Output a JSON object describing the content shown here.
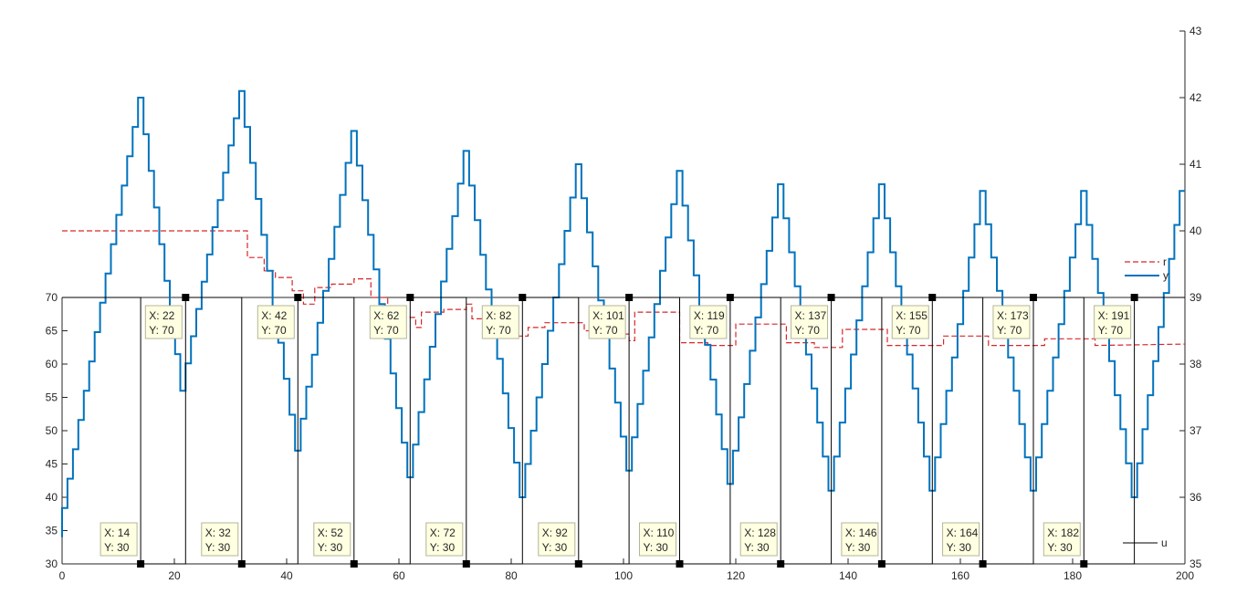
{
  "chart_data": {
    "type": "line",
    "title": "",
    "xlabel": "",
    "x_range": [
      0,
      200
    ],
    "x_ticks": [
      0,
      20,
      40,
      60,
      80,
      100,
      120,
      140,
      160,
      180,
      200
    ],
    "left_axis": {
      "ylim": [
        30,
        70
      ],
      "ticks": [
        30,
        35,
        40,
        45,
        50,
        55,
        60,
        65,
        70
      ]
    },
    "right_axis": {
      "ylim": [
        35,
        43
      ],
      "ticks": [
        35,
        36,
        37,
        38,
        39,
        40,
        41,
        42,
        43
      ]
    },
    "grid": false,
    "legend_upper": {
      "placement": "bottom-right of upper plot",
      "entries": [
        "r",
        "y"
      ]
    },
    "legend_lower": {
      "placement": "bottom-right",
      "entries": [
        "u"
      ]
    },
    "series": [
      {
        "name": "r",
        "axis": "right",
        "style": "dashed-step",
        "color": "#d62728",
        "points": [
          [
            0,
            40.0
          ],
          [
            33,
            40.0
          ],
          [
            33,
            39.6
          ],
          [
            36,
            39.6
          ],
          [
            36,
            39.4
          ],
          [
            38,
            39.4
          ],
          [
            38,
            39.3
          ],
          [
            41,
            39.3
          ],
          [
            41,
            39.1
          ],
          [
            43,
            39.1
          ],
          [
            43,
            38.9
          ],
          [
            45,
            38.9
          ],
          [
            45,
            39.15
          ],
          [
            48,
            39.15
          ],
          [
            48,
            39.2
          ],
          [
            52,
            39.2
          ],
          [
            52,
            39.28
          ],
          [
            55,
            39.28
          ],
          [
            55,
            39.0
          ],
          [
            58,
            39.0
          ],
          [
            58,
            38.85
          ],
          [
            61,
            38.85
          ],
          [
            61,
            38.7
          ],
          [
            63,
            38.7
          ],
          [
            63,
            38.55
          ],
          [
            64,
            38.55
          ],
          [
            64,
            38.78
          ],
          [
            68,
            38.78
          ],
          [
            68,
            38.82
          ],
          [
            72,
            38.82
          ],
          [
            72,
            38.9
          ],
          [
            73,
            38.9
          ],
          [
            73,
            38.68
          ],
          [
            76,
            38.68
          ],
          [
            76,
            38.55
          ],
          [
            80,
            38.55
          ],
          [
            80,
            38.42
          ],
          [
            83,
            38.42
          ],
          [
            83,
            38.55
          ],
          [
            86,
            38.55
          ],
          [
            86,
            38.62
          ],
          [
            93,
            38.62
          ],
          [
            93,
            38.5
          ],
          [
            97,
            38.5
          ],
          [
            97,
            38.45
          ],
          [
            101,
            38.45
          ],
          [
            101,
            38.35
          ],
          [
            102,
            38.35
          ],
          [
            102,
            38.78
          ],
          [
            110,
            38.78
          ],
          [
            110,
            38.32
          ],
          [
            115,
            38.32
          ],
          [
            115,
            38.28
          ],
          [
            120,
            38.28
          ],
          [
            120,
            38.6
          ],
          [
            129,
            38.6
          ],
          [
            129,
            38.32
          ],
          [
            134,
            38.32
          ],
          [
            134,
            38.25
          ],
          [
            139,
            38.25
          ],
          [
            139,
            38.52
          ],
          [
            147,
            38.52
          ],
          [
            147,
            38.28
          ],
          [
            157,
            38.28
          ],
          [
            157,
            38.42
          ],
          [
            165,
            38.42
          ],
          [
            165,
            38.28
          ],
          [
            175,
            38.28
          ],
          [
            175,
            38.38
          ],
          [
            184,
            38.38
          ],
          [
            184,
            38.28
          ],
          [
            200,
            38.3
          ]
        ]
      },
      {
        "name": "y",
        "axis": "right",
        "style": "solid-staircase",
        "color": "#0072bd",
        "peaks": [
          [
            0,
            35.4
          ],
          [
            14.5,
            42.0
          ],
          [
            22,
            37.6
          ],
          [
            32.5,
            42.1
          ],
          [
            42.5,
            36.7
          ],
          [
            52.5,
            41.5
          ],
          [
            62.5,
            36.3
          ],
          [
            72.5,
            41.2
          ],
          [
            82.5,
            36.0
          ],
          [
            92.5,
            41.0
          ],
          [
            101.5,
            36.4
          ],
          [
            110.5,
            40.9
          ],
          [
            119.5,
            36.2
          ],
          [
            128.5,
            40.7
          ],
          [
            137.5,
            36.1
          ],
          [
            146.5,
            40.7
          ],
          [
            155.5,
            36.1
          ],
          [
            164.5,
            40.6
          ],
          [
            173.5,
            36.1
          ],
          [
            182.5,
            40.6
          ],
          [
            191.5,
            36.0
          ],
          [
            200,
            40.6
          ]
        ]
      },
      {
        "name": "u",
        "axis": "left",
        "style": "square-wave",
        "color": "#000000",
        "edges": [
          14,
          22,
          32,
          42,
          52,
          62,
          72,
          82,
          92,
          101,
          110,
          119,
          128,
          137,
          146,
          155,
          164,
          173,
          182,
          191
        ],
        "start_level": 70,
        "levels": [
          30,
          70
        ]
      }
    ],
    "annotations": [
      {
        "label_x": "X: 22",
        "label_y": "Y: 70",
        "x": 22,
        "y": 70
      },
      {
        "label_x": "X: 42",
        "label_y": "Y: 70",
        "x": 42,
        "y": 70
      },
      {
        "label_x": "X: 62",
        "label_y": "Y: 70",
        "x": 62,
        "y": 70
      },
      {
        "label_x": "X: 82",
        "label_y": "Y: 70",
        "x": 82,
        "y": 70
      },
      {
        "label_x": "X: 101",
        "label_y": "Y: 70",
        "x": 101,
        "y": 70
      },
      {
        "label_x": "X: 119",
        "label_y": "Y: 70",
        "x": 119,
        "y": 70
      },
      {
        "label_x": "X: 137",
        "label_y": "Y: 70",
        "x": 137,
        "y": 70
      },
      {
        "label_x": "X: 155",
        "label_y": "Y: 70",
        "x": 155,
        "y": 70
      },
      {
        "label_x": "X: 173",
        "label_y": "Y: 70",
        "x": 173,
        "y": 70
      },
      {
        "label_x": "X: 191",
        "label_y": "Y: 70",
        "x": 191,
        "y": 70
      },
      {
        "label_x": "X: 14",
        "label_y": "Y: 30",
        "x": 14,
        "y": 30
      },
      {
        "label_x": "X: 32",
        "label_y": "Y: 30",
        "x": 32,
        "y": 30
      },
      {
        "label_x": "X: 52",
        "label_y": "Y: 30",
        "x": 52,
        "y": 30
      },
      {
        "label_x": "X: 72",
        "label_y": "Y: 30",
        "x": 72,
        "y": 30
      },
      {
        "label_x": "X: 92",
        "label_y": "Y: 30",
        "x": 92,
        "y": 30
      },
      {
        "label_x": "X: 110",
        "label_y": "Y: 30",
        "x": 110,
        "y": 30
      },
      {
        "label_x": "X: 128",
        "label_y": "Y: 30",
        "x": 128,
        "y": 30
      },
      {
        "label_x": "X: 146",
        "label_y": "Y: 30",
        "x": 146,
        "y": 30
      },
      {
        "label_x": "X: 164",
        "label_y": "Y: 30",
        "x": 164,
        "y": 30
      },
      {
        "label_x": "X: 182",
        "label_y": "Y: 30",
        "x": 182,
        "y": 30
      }
    ]
  }
}
